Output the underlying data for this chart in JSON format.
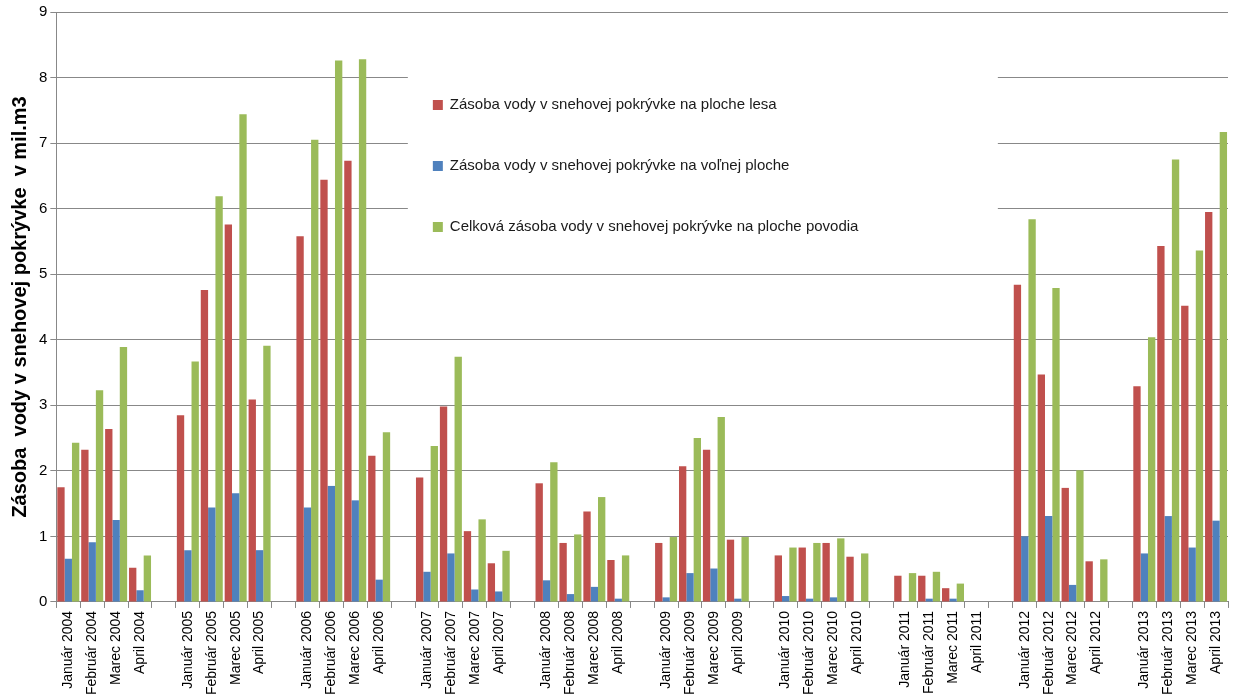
{
  "chart_data": {
    "type": "bar",
    "ylabel": "Zásoba  vody v snehovej pokrývke  v mil.m3",
    "categories": [
      "Január 2004",
      "Február 2004",
      "Marec 2004",
      "April 2004",
      null,
      "Január 2005",
      "Február 2005",
      "Marec 2005",
      "April 2005",
      null,
      "Január 2006",
      "Február 2006",
      "Marec 2006",
      "April 2006",
      null,
      "Január 2007",
      "Február 2007",
      "Marec 2007",
      "April 2007",
      null,
      "Január 2008",
      "Február 2008",
      "Marec 2008",
      "April 2008",
      null,
      "Január 2009",
      "Február 2009",
      "Marec 2009",
      "April 2009",
      null,
      "Január 2010",
      "Február 2010",
      "Marec 2010",
      "April 2010",
      null,
      "Január 2011",
      "Február 2011",
      "Marec 2011",
      "April 2011",
      null,
      "Január 2012",
      "Február 2012",
      "Marec 2012",
      "April 2012",
      null,
      "Január 2013",
      "Február 2013",
      "Marec 2013",
      "April 2013"
    ],
    "series": [
      {
        "name": "Zásoba vody v snehovej pokrývke na ploche lesa",
        "color": "#c0504d",
        "values": [
          1.75,
          2.32,
          2.64,
          0.52,
          null,
          2.85,
          4.76,
          5.76,
          3.09,
          null,
          5.58,
          6.44,
          6.73,
          2.23,
          null,
          1.9,
          2.98,
          1.08,
          0.59,
          null,
          1.81,
          0.9,
          1.38,
          0.64,
          null,
          0.9,
          2.07,
          2.32,
          0.95,
          null,
          0.71,
          0.83,
          0.9,
          0.69,
          null,
          0.4,
          0.4,
          0.21,
          null,
          null,
          4.84,
          3.47,
          1.74,
          0.62,
          null,
          3.29,
          5.43,
          4.52,
          5.95
        ]
      },
      {
        "name": "Zásoba vody v snehovej pokrývke na voľnej ploche",
        "color": "#4f81bd",
        "values": [
          0.66,
          0.91,
          1.25,
          0.18,
          null,
          0.79,
          1.44,
          1.66,
          0.79,
          null,
          1.44,
          1.77,
          1.55,
          0.34,
          null,
          0.46,
          0.74,
          0.19,
          0.16,
          null,
          0.33,
          0.12,
          0.23,
          0.05,
          null,
          0.07,
          0.44,
          0.51,
          0.05,
          null,
          0.09,
          0.05,
          0.07,
          null,
          null,
          null,
          0.05,
          0.05,
          null,
          null,
          1.0,
          1.31,
          0.26,
          null,
          null,
          0.74,
          1.31,
          0.83,
          1.24
        ]
      },
      {
        "name": "Celková zásoba vody v snehovej pokrývke na ploche povodia",
        "color": "#9bbb59",
        "values": [
          2.43,
          3.23,
          3.89,
          0.71,
          null,
          3.67,
          6.19,
          7.44,
          3.91,
          null,
          7.05,
          8.26,
          8.28,
          2.59,
          null,
          2.38,
          3.74,
          1.26,
          0.78,
          null,
          2.13,
          1.03,
          1.6,
          0.71,
          null,
          0.99,
          2.5,
          2.82,
          0.99,
          null,
          0.83,
          0.9,
          0.97,
          0.74,
          null,
          0.44,
          0.46,
          0.28,
          null,
          null,
          5.84,
          4.79,
          2.01,
          0.65,
          null,
          4.04,
          6.75,
          5.36,
          7.17
        ]
      }
    ],
    "ylim": [
      0,
      9
    ],
    "yticks": [
      0,
      1,
      2,
      3,
      4,
      5,
      6,
      7,
      8,
      9
    ],
    "grid": "y",
    "legend": "top"
  }
}
